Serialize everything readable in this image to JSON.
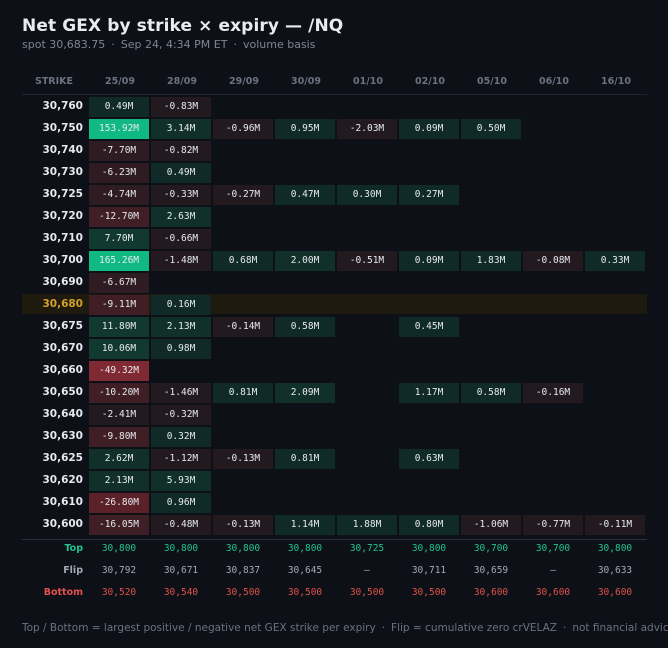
{
  "header": {
    "title": "Net GEX by strike × expiry — /NQ",
    "spot": "spot 30,683.75",
    "timestamp": "Sep 24, 4:34 PM ET",
    "basis": "volume basis"
  },
  "footer": {
    "legend_text": "Top / Bottom = largest positive / negative net GEX strike per expiry",
    "flip_text": "Flip = cumulative zero cr",
    "brand": "VELAZ",
    "disclaimer": "not financial advice"
  },
  "colors": {
    "positive_strong": "#10b981",
    "positive_weak": "#0f2a27",
    "negative_strong": "#7f2a33",
    "negative_weak": "#221a1f",
    "spot_highlight": "#d4a12a",
    "top_color": "#22c38e",
    "flip_color": "#a3a9b5",
    "bottom_color": "#e0524a"
  },
  "chart_data": {
    "type": "heatmap",
    "title": "Net GEX by strike × expiry — /NQ",
    "corner_label": "STRIKE",
    "x_categories": [
      "25/09",
      "28/09",
      "29/09",
      "30/09",
      "01/10",
      "02/10",
      "05/10",
      "06/10",
      "16/10"
    ],
    "spot_strike": "30,680",
    "rows": [
      {
        "strike": "30,760",
        "values": [
          "0.49M",
          "-0.83M",
          null,
          null,
          null,
          null,
          null,
          null,
          null
        ]
      },
      {
        "strike": "30,750",
        "values": [
          "153.92M",
          "3.14M",
          "-0.96M",
          "0.95M",
          "-2.03M",
          "0.09M",
          "0.50M",
          null,
          null
        ]
      },
      {
        "strike": "30,740",
        "values": [
          "-7.70M",
          "-0.82M",
          null,
          null,
          null,
          null,
          null,
          null,
          null
        ]
      },
      {
        "strike": "30,730",
        "values": [
          "-6.23M",
          "0.49M",
          null,
          null,
          null,
          null,
          null,
          null,
          null
        ]
      },
      {
        "strike": "30,725",
        "values": [
          "-4.74M",
          "-0.33M",
          "-0.27M",
          "0.47M",
          "0.30M",
          "0.27M",
          null,
          null,
          null
        ]
      },
      {
        "strike": "30,720",
        "values": [
          "-12.70M",
          "2.63M",
          null,
          null,
          null,
          null,
          null,
          null,
          null
        ]
      },
      {
        "strike": "30,710",
        "values": [
          "7.70M",
          "-0.66M",
          null,
          null,
          null,
          null,
          null,
          null,
          null
        ]
      },
      {
        "strike": "30,700",
        "values": [
          "165.26M",
          "-1.48M",
          "0.68M",
          "2.00M",
          "-0.51M",
          "0.09M",
          "1.83M",
          "-0.08M",
          "0.33M"
        ]
      },
      {
        "strike": "30,690",
        "values": [
          "-6.67M",
          null,
          null,
          null,
          null,
          null,
          null,
          null,
          null
        ]
      },
      {
        "strike": "30,680",
        "values": [
          "-9.11M",
          "0.16M",
          null,
          null,
          null,
          null,
          null,
          null,
          null
        ]
      },
      {
        "strike": "30,675",
        "values": [
          "11.80M",
          "2.13M",
          "-0.14M",
          "0.58M",
          null,
          "0.45M",
          null,
          null,
          null
        ]
      },
      {
        "strike": "30,670",
        "values": [
          "10.06M",
          "0.98M",
          null,
          null,
          null,
          null,
          null,
          null,
          null
        ]
      },
      {
        "strike": "30,660",
        "values": [
          "-49.32M",
          null,
          null,
          null,
          null,
          null,
          null,
          null,
          null
        ]
      },
      {
        "strike": "30,650",
        "values": [
          "-10.20M",
          "-1.46M",
          "0.81M",
          "2.09M",
          null,
          "1.17M",
          "0.58M",
          "-0.16M",
          null
        ]
      },
      {
        "strike": "30,640",
        "values": [
          "-2.41M",
          "-0.32M",
          null,
          null,
          null,
          null,
          null,
          null,
          null
        ]
      },
      {
        "strike": "30,630",
        "values": [
          "-9.80M",
          "0.32M",
          null,
          null,
          null,
          null,
          null,
          null,
          null
        ]
      },
      {
        "strike": "30,625",
        "values": [
          "2.62M",
          "-1.12M",
          "-0.13M",
          "0.81M",
          null,
          "0.63M",
          null,
          null,
          null
        ]
      },
      {
        "strike": "30,620",
        "values": [
          "2.13M",
          "5.93M",
          null,
          null,
          null,
          null,
          null,
          null,
          null
        ]
      },
      {
        "strike": "30,610",
        "values": [
          "-26.80M",
          "0.96M",
          null,
          null,
          null,
          null,
          null,
          null,
          null
        ]
      },
      {
        "strike": "30,600",
        "values": [
          "-16.05M",
          "-0.48M",
          "-0.13M",
          "1.14M",
          "1.88M",
          "0.80M",
          "-1.06M",
          "-0.77M",
          "-0.11M"
        ]
      }
    ],
    "summary": [
      {
        "label": "Top",
        "values": [
          "30,800",
          "30,800",
          "30,800",
          "30,800",
          "30,725",
          "30,800",
          "30,700",
          "30,700",
          "30,800"
        ]
      },
      {
        "label": "Flip",
        "values": [
          "30,792",
          "30,671",
          "30,837",
          "30,645",
          "—",
          "30,711",
          "30,659",
          "—",
          "30,633"
        ]
      },
      {
        "label": "Bottom",
        "values": [
          "30,520",
          "30,540",
          "30,500",
          "30,500",
          "30,500",
          "30,500",
          "30,600",
          "30,600",
          "30,600"
        ]
      }
    ]
  }
}
